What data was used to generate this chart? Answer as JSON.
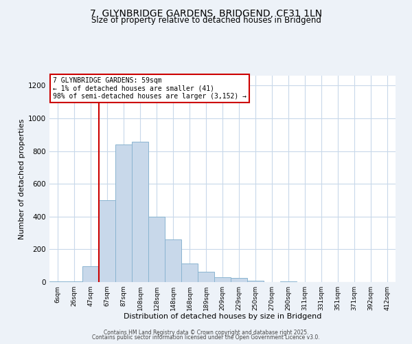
{
  "title": "7, GLYNBRIDGE GARDENS, BRIDGEND, CF31 1LN",
  "subtitle": "Size of property relative to detached houses in Bridgend",
  "xlabel": "Distribution of detached houses by size in Bridgend",
  "ylabel": "Number of detached properties",
  "bar_labels": [
    "6sqm",
    "26sqm",
    "47sqm",
    "67sqm",
    "87sqm",
    "108sqm",
    "128sqm",
    "148sqm",
    "168sqm",
    "189sqm",
    "209sqm",
    "229sqm",
    "250sqm",
    "270sqm",
    "290sqm",
    "311sqm",
    "331sqm",
    "351sqm",
    "371sqm",
    "392sqm",
    "412sqm"
  ],
  "bar_values": [
    3,
    5,
    95,
    500,
    840,
    855,
    400,
    260,
    115,
    65,
    30,
    25,
    10,
    0,
    5,
    0,
    0,
    0,
    0,
    0,
    0
  ],
  "bar_color": "#c8d8ea",
  "bar_edge_color": "#8ab4d0",
  "vline_index": 3,
  "vline_color": "#cc0000",
  "annotation_text": "7 GLYNBRIDGE GARDENS: 59sqm\n← 1% of detached houses are smaller (41)\n98% of semi-detached houses are larger (3,152) →",
  "annotation_box_facecolor": "#ffffff",
  "annotation_box_edgecolor": "#cc0000",
  "ylim": [
    0,
    1260
  ],
  "yticks": [
    0,
    200,
    400,
    600,
    800,
    1000,
    1200
  ],
  "footer_line1": "Contains HM Land Registry data © Crown copyright and database right 2025.",
  "footer_line2": "Contains public sector information licensed under the Open Government Licence v3.0.",
  "bg_color": "#edf2f8",
  "plot_bg_color": "#ffffff",
  "grid_color": "#c8d8ea",
  "title_fontsize": 10,
  "subtitle_fontsize": 8.5
}
